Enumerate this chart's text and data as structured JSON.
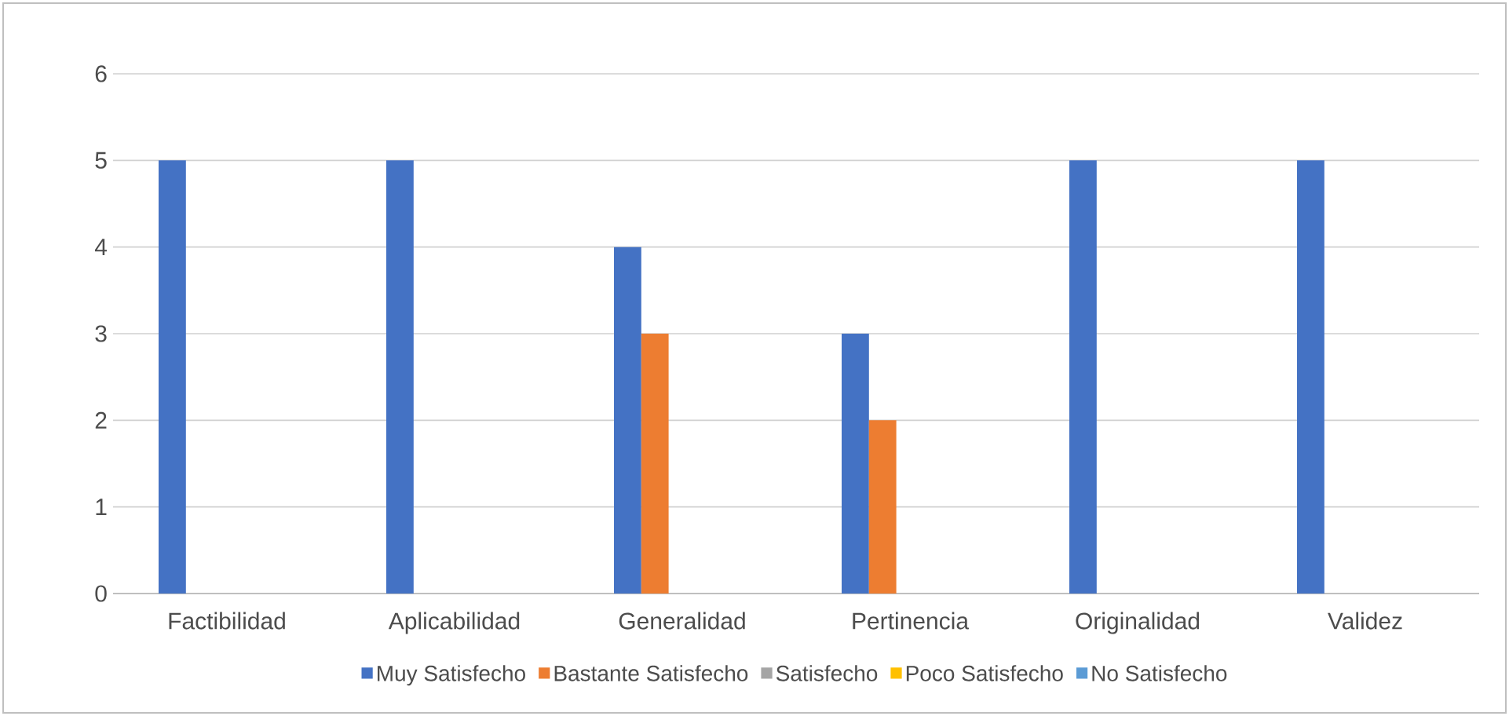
{
  "chart_data": {
    "type": "bar",
    "categories": [
      "Factibilidad",
      "Aplicabilidad",
      "Generalidad",
      "Pertinencia",
      "Originalidad",
      "Validez"
    ],
    "series": [
      {
        "name": "Muy Satisfecho",
        "color": "#4472c4",
        "values": [
          5,
          5,
          4,
          3,
          5,
          5
        ]
      },
      {
        "name": "Bastante Satisfecho",
        "color": "#ed7d31",
        "values": [
          0,
          0,
          3,
          2,
          0,
          0
        ]
      },
      {
        "name": "Satisfecho",
        "color": "#a5a5a5",
        "values": [
          0,
          0,
          0,
          0,
          0,
          0
        ]
      },
      {
        "name": "Poco Satisfecho",
        "color": "#ffc000",
        "values": [
          0,
          0,
          0,
          0,
          0,
          0
        ]
      },
      {
        "name": "No Satisfecho",
        "color": "#5b9bd5",
        "values": [
          0,
          0,
          0,
          0,
          0,
          0
        ]
      }
    ],
    "ylim": [
      0,
      6
    ],
    "yticks": [
      0,
      1,
      2,
      3,
      4,
      5,
      6
    ],
    "grid": "y",
    "legend": "bottom"
  }
}
